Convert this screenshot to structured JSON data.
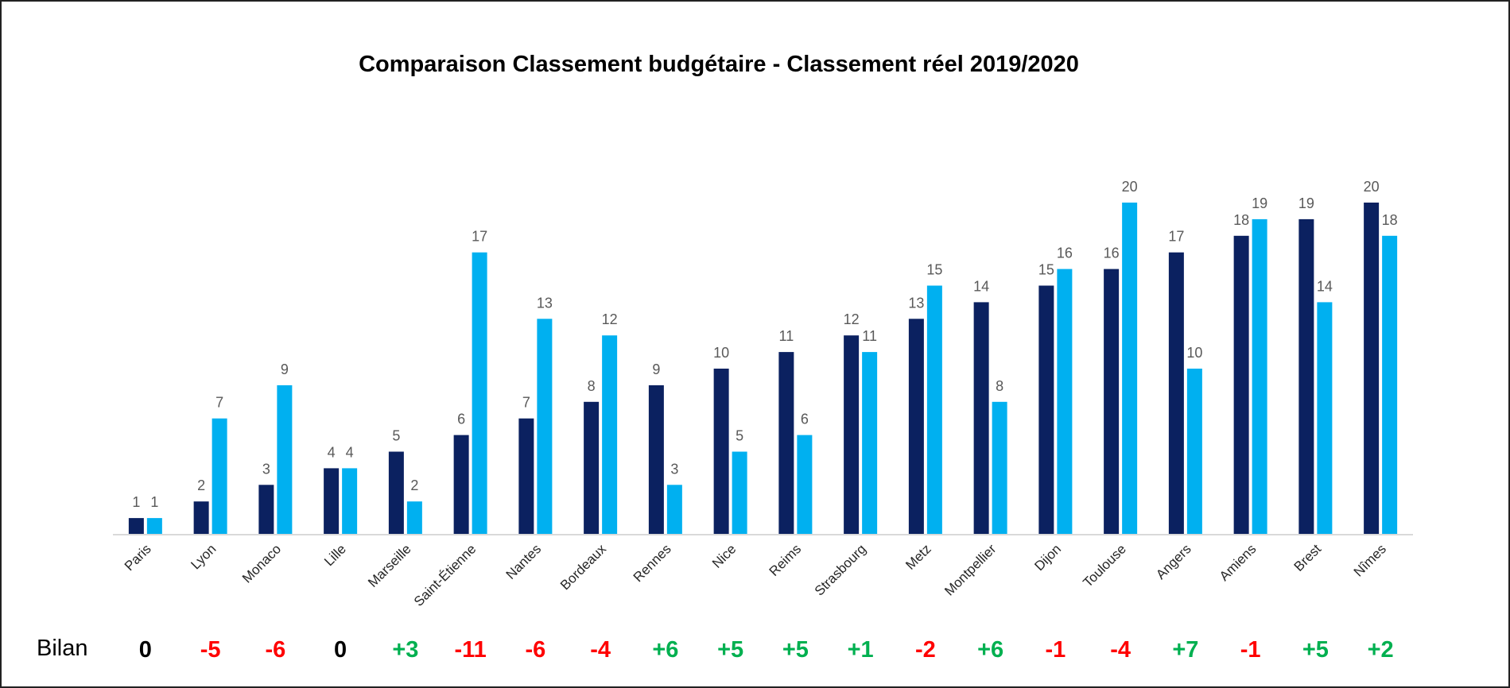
{
  "chart_data": {
    "type": "bar",
    "title": "Comparaison Classement budgétaire - Classement réel 2019/2020",
    "categories": [
      "Paris",
      "Lyon",
      "Monaco",
      "Lille",
      "Marseille",
      "Saint-Étienne",
      "Nantes",
      "Bordeaux",
      "Rennes",
      "Nice",
      "Reims",
      "Strasbourg",
      "Metz",
      "Montpellier",
      "Dijon",
      "Toulouse",
      "Angers",
      "Amiens",
      "Brest",
      "Nîmes"
    ],
    "series": [
      {
        "color": "#0b2160",
        "values": [
          1,
          2,
          3,
          4,
          5,
          6,
          7,
          8,
          9,
          10,
          11,
          12,
          13,
          14,
          15,
          16,
          17,
          18,
          19,
          20
        ]
      },
      {
        "color": "#00b0f0",
        "values": [
          1,
          7,
          9,
          4,
          2,
          17,
          13,
          12,
          3,
          5,
          6,
          11,
          15,
          8,
          16,
          20,
          10,
          19,
          14,
          18
        ]
      }
    ],
    "ylim": [
      0,
      20
    ],
    "grid": false,
    "legend": "none"
  },
  "bilan": {
    "label": "Bilan",
    "values": [
      "0",
      "-5",
      "-6",
      "0",
      "+3",
      "-11",
      "-6",
      "-4",
      "+6",
      "+5",
      "+5",
      "+1",
      "-2",
      "+6",
      "-1",
      "-4",
      "+7",
      "-1",
      "+5",
      "+2"
    ],
    "colors": {
      "zero": "#000000",
      "negative": "#ff0000",
      "positive": "#00b050"
    }
  }
}
